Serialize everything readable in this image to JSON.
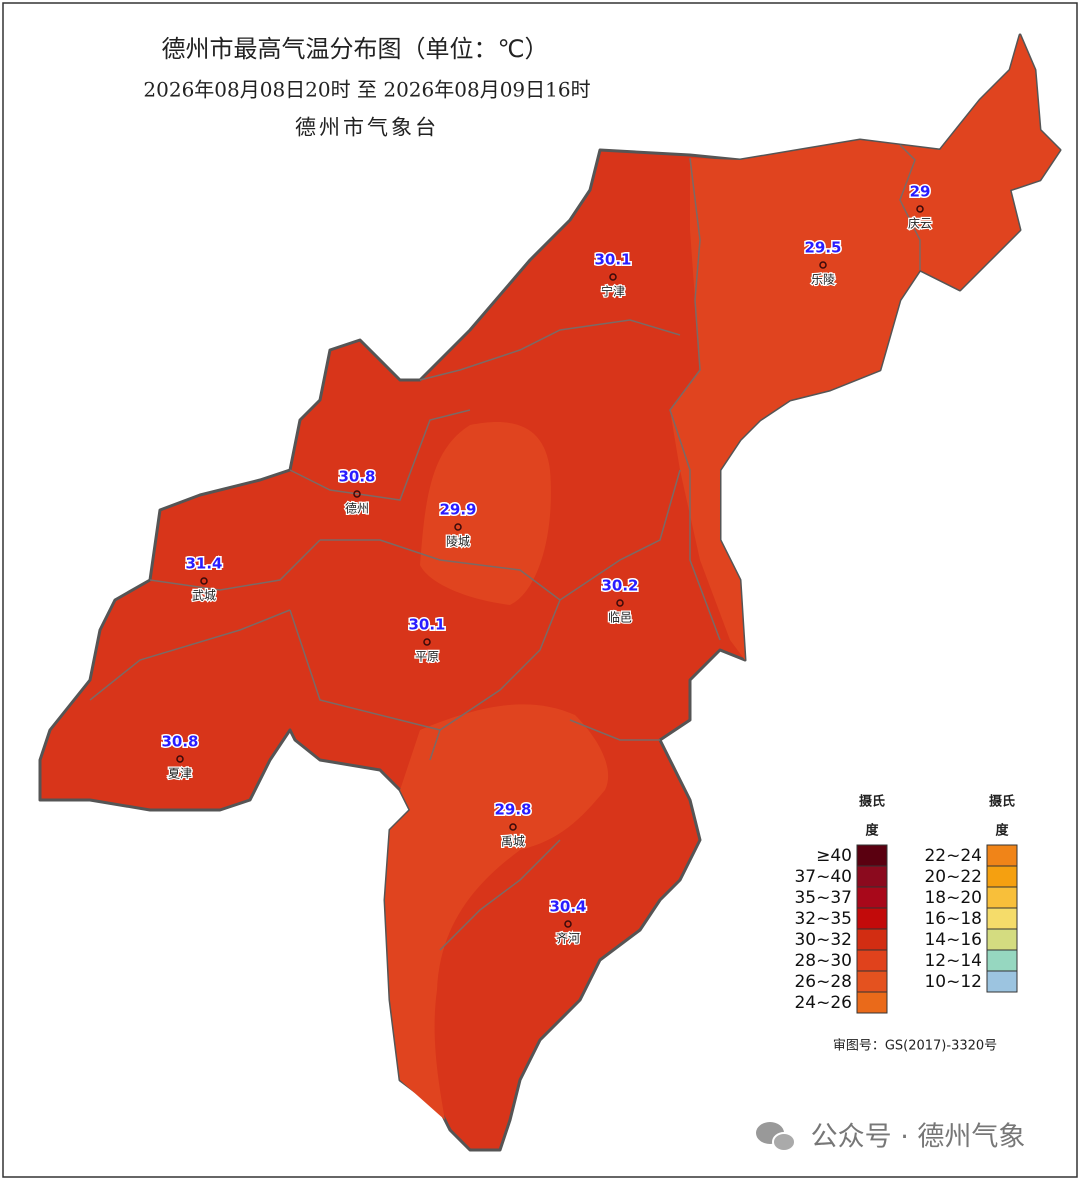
{
  "header": {
    "title": "德州市最高气温分布图（单位：℃）",
    "period": "2026年08月08日20时  至  2026年08月09日16时",
    "agency": "德州市气象台"
  },
  "stations": [
    {
      "name": "庆云",
      "value": 29
    },
    {
      "name": "乐陵",
      "value": 29.5
    },
    {
      "name": "宁津",
      "value": 30.1
    },
    {
      "name": "德州",
      "value": 30.8
    },
    {
      "name": "陵城",
      "value": 29.9
    },
    {
      "name": "武城",
      "value": 31.4
    },
    {
      "name": "平原",
      "value": 30.1
    },
    {
      "name": "临邑",
      "value": 30.2
    },
    {
      "name": "夏津",
      "value": 30.8
    },
    {
      "name": "禹城",
      "value": 29.8
    },
    {
      "name": "齐河",
      "value": 30.4
    }
  ],
  "legend": {
    "columns": [
      {
        "header": [
          "摄氏",
          "度"
        ],
        "items": [
          {
            "label": "≥40",
            "color": "#5a0010"
          },
          {
            "label": "37~40",
            "color": "#8b0a1e"
          },
          {
            "label": "35~37",
            "color": "#a8081a"
          },
          {
            "label": "32~35",
            "color": "#c20a0a"
          },
          {
            "label": "30~32",
            "color": "#d22d12"
          },
          {
            "label": "28~30",
            "color": "#e0421c"
          },
          {
            "label": "26~28",
            "color": "#e4521f"
          },
          {
            "label": "24~26",
            "color": "#ea6a1a"
          }
        ]
      },
      {
        "header": [
          "摄氏",
          "度"
        ],
        "items": [
          {
            "label": "22~24",
            "color": "#f08418"
          },
          {
            "label": "20~22",
            "color": "#f5a010"
          },
          {
            "label": "18~20",
            "color": "#f8bf3a"
          },
          {
            "label": "16~18",
            "color": "#f5dc6a"
          },
          {
            "label": "14~16",
            "color": "#d4dc80"
          },
          {
            "label": "12~14",
            "color": "#96d7c0"
          },
          {
            "label": "10~12",
            "color": "#9cc4e0"
          }
        ]
      }
    ]
  },
  "review_number": "审图号：GS(2017)-3320号",
  "watermark": "公众号 · 德州气象"
}
